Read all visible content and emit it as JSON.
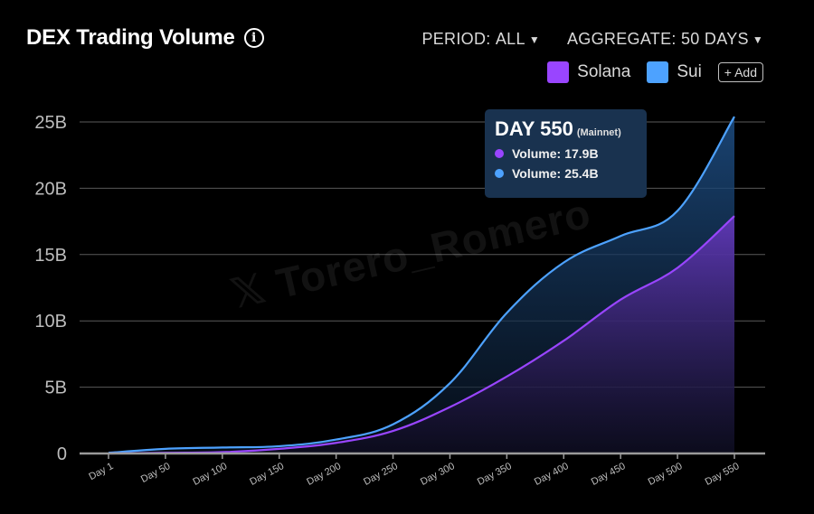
{
  "header": {
    "title": "DEX Trading Volume",
    "info_glyph": "i"
  },
  "controls": {
    "period": {
      "label": "PERIOD:",
      "value": "ALL"
    },
    "aggregate": {
      "label": "AGGREGATE:",
      "value": "50 DAYS"
    }
  },
  "legend": {
    "items": [
      {
        "label": "Solana",
        "color": "#9945ff"
      },
      {
        "label": "Sui",
        "color": "#4da2ff"
      }
    ],
    "add_label": "+ Add"
  },
  "tooltip": {
    "title": "DAY 550",
    "subtitle": "(Mainnet)",
    "rows": [
      {
        "label": "Volume:",
        "value": "17.9B",
        "color": "#9945ff"
      },
      {
        "label": "Volume:",
        "value": "25.4B",
        "color": "#4da2ff"
      }
    ]
  },
  "watermark": "𝕏 Torero_Romero",
  "chart_data": {
    "type": "area",
    "categories": [
      "Day 1",
      "Day 50",
      "Day 100",
      "Day 150",
      "Day 200",
      "Day 250",
      "Day 300",
      "Day 350",
      "Day 400",
      "Day 450",
      "Day 500",
      "Day 550"
    ],
    "series": [
      {
        "name": "Solana",
        "color": "#9945ff",
        "values": [
          0.0,
          0.05,
          0.1,
          0.35,
          0.8,
          1.7,
          3.5,
          5.8,
          8.5,
          11.6,
          14.0,
          17.9
        ]
      },
      {
        "name": "Sui",
        "color": "#4da2ff",
        "values": [
          0.05,
          0.35,
          0.45,
          0.55,
          1.05,
          2.2,
          5.3,
          10.6,
          14.4,
          16.4,
          18.3,
          25.4
        ]
      }
    ],
    "yticks": [
      0,
      5,
      10,
      15,
      20,
      25
    ],
    "ytick_labels": [
      "0",
      "5B",
      "10B",
      "15B",
      "20B",
      "25B"
    ],
    "ylim": [
      0,
      25
    ],
    "grid": true
  }
}
